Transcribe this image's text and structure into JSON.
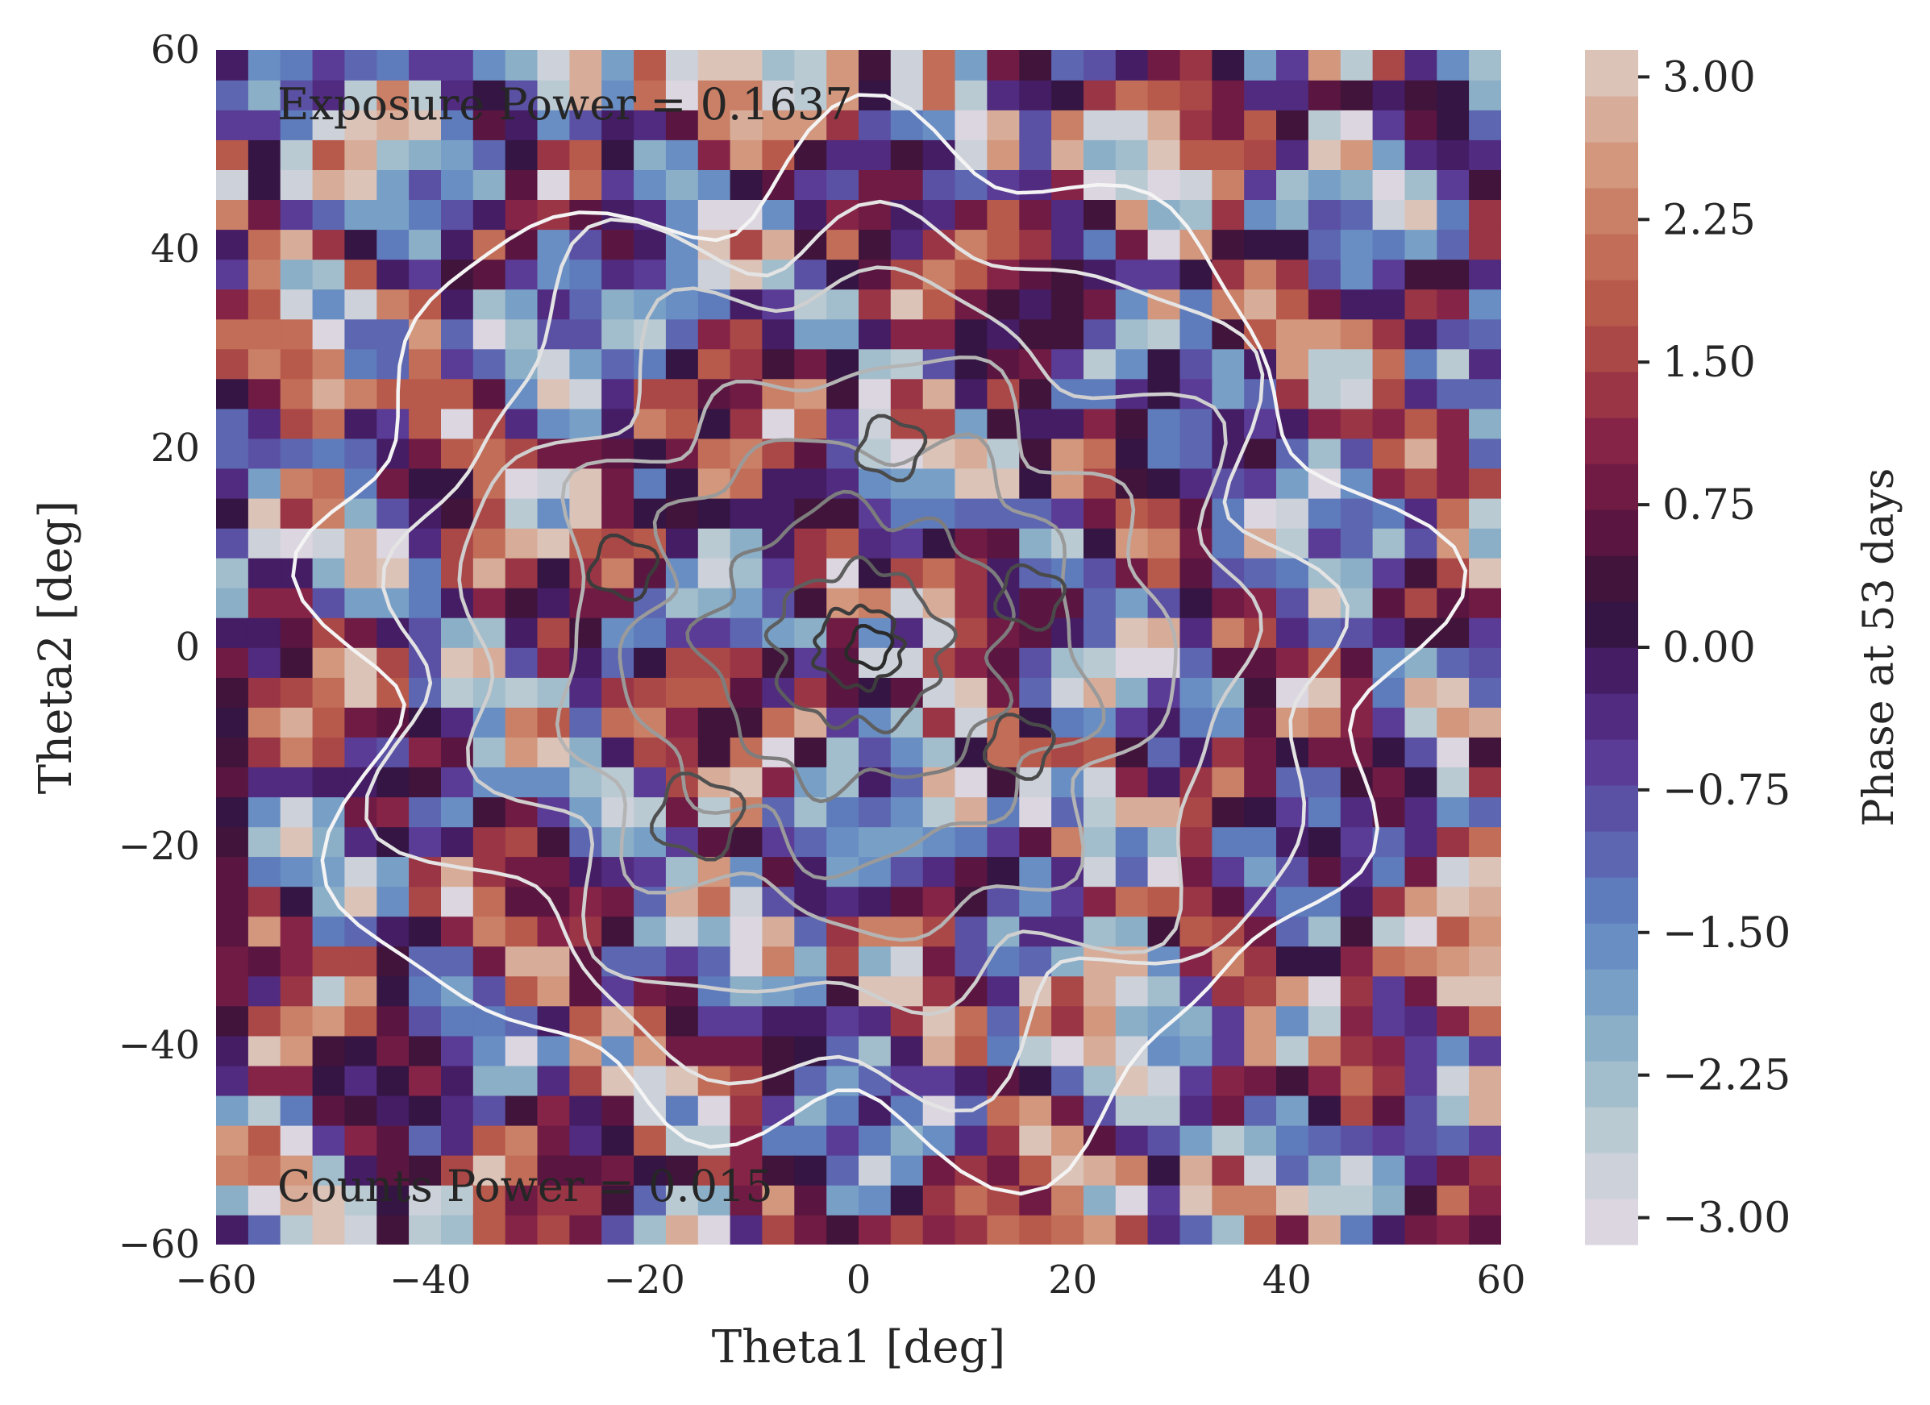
{
  "chart_data": {
    "type": "heatmap",
    "subtype": "filled-contour-with-line-contours",
    "xlabel": "Theta1 [deg]",
    "ylabel": "Theta2 [deg]",
    "xlim": [
      -60,
      60
    ],
    "ylim": [
      -60,
      60
    ],
    "x_ticks": [
      -60,
      -40,
      -20,
      0,
      20,
      40,
      60
    ],
    "y_ticks": [
      -60,
      -40,
      -20,
      0,
      20,
      40,
      60
    ],
    "grid": false,
    "colormap": "twilight_shifted",
    "colorbar": {
      "label": "Phase at 53 days",
      "range": [
        -3.14159,
        3.14159
      ],
      "ticks": [
        -3.0,
        -2.25,
        -1.5,
        -0.75,
        0.0,
        0.75,
        1.5,
        2.25,
        3.0
      ],
      "tick_labels": [
        "−3.00",
        "−2.25",
        "−1.50",
        "−0.75",
        "0.00",
        "0.75",
        "1.50",
        "2.25",
        "3.00"
      ],
      "levels": 26
    },
    "annotations": [
      {
        "text": "Exposure Power = 0.1637",
        "position": "top-left"
      },
      {
        "text": "Counts Power = 0.015",
        "position": "bottom-left"
      }
    ],
    "contour_overlay": {
      "description": "counts density contours, darker = higher level",
      "levels": [
        {
          "radius_deg": 50,
          "color": "#f4f4f4"
        },
        {
          "radius_deg": 43,
          "color": "#e4e4e4"
        },
        {
          "radius_deg": 36,
          "color": "#cfcfcf"
        },
        {
          "radius_deg": 28,
          "color": "#b4b4b4"
        },
        {
          "radius_deg": 21,
          "color": "#9a9a9a"
        },
        {
          "radius_deg": 14,
          "color": "#7d7d7d"
        },
        {
          "radius_deg": 8,
          "color": "#5e5e5e"
        },
        {
          "radius_deg": 4,
          "color": "#3c3c3c"
        }
      ],
      "hotspots": [
        {
          "x": 3,
          "y": 20,
          "r": 3,
          "color": "#4a4a4a"
        },
        {
          "x": -22,
          "y": 8,
          "r": 3,
          "color": "#3c3c3c"
        },
        {
          "x": 16,
          "y": 5,
          "r": 3,
          "color": "#4a4a4a"
        },
        {
          "x": 15,
          "y": -10,
          "r": 3,
          "color": "#4a4a4a"
        },
        {
          "x": -15,
          "y": -17,
          "r": 4,
          "color": "#505050"
        },
        {
          "x": 1,
          "y": 0,
          "r": 2,
          "color": "#2a2a2a"
        }
      ]
    },
    "colors": {
      "background": "#ffffff",
      "text": "#262626",
      "palette": [
        "#dcd6e0",
        "#c2ced6",
        "#9ab9c8",
        "#78a0c7",
        "#5f82c0",
        "#5b5fad",
        "#5a3c96",
        "#4a2070",
        "#2e1238",
        "#5a1640",
        "#7f1f47",
        "#a03a45",
        "#b85a4b",
        "#c8795f",
        "#d49e84",
        "#dcc3b8"
      ]
    }
  }
}
